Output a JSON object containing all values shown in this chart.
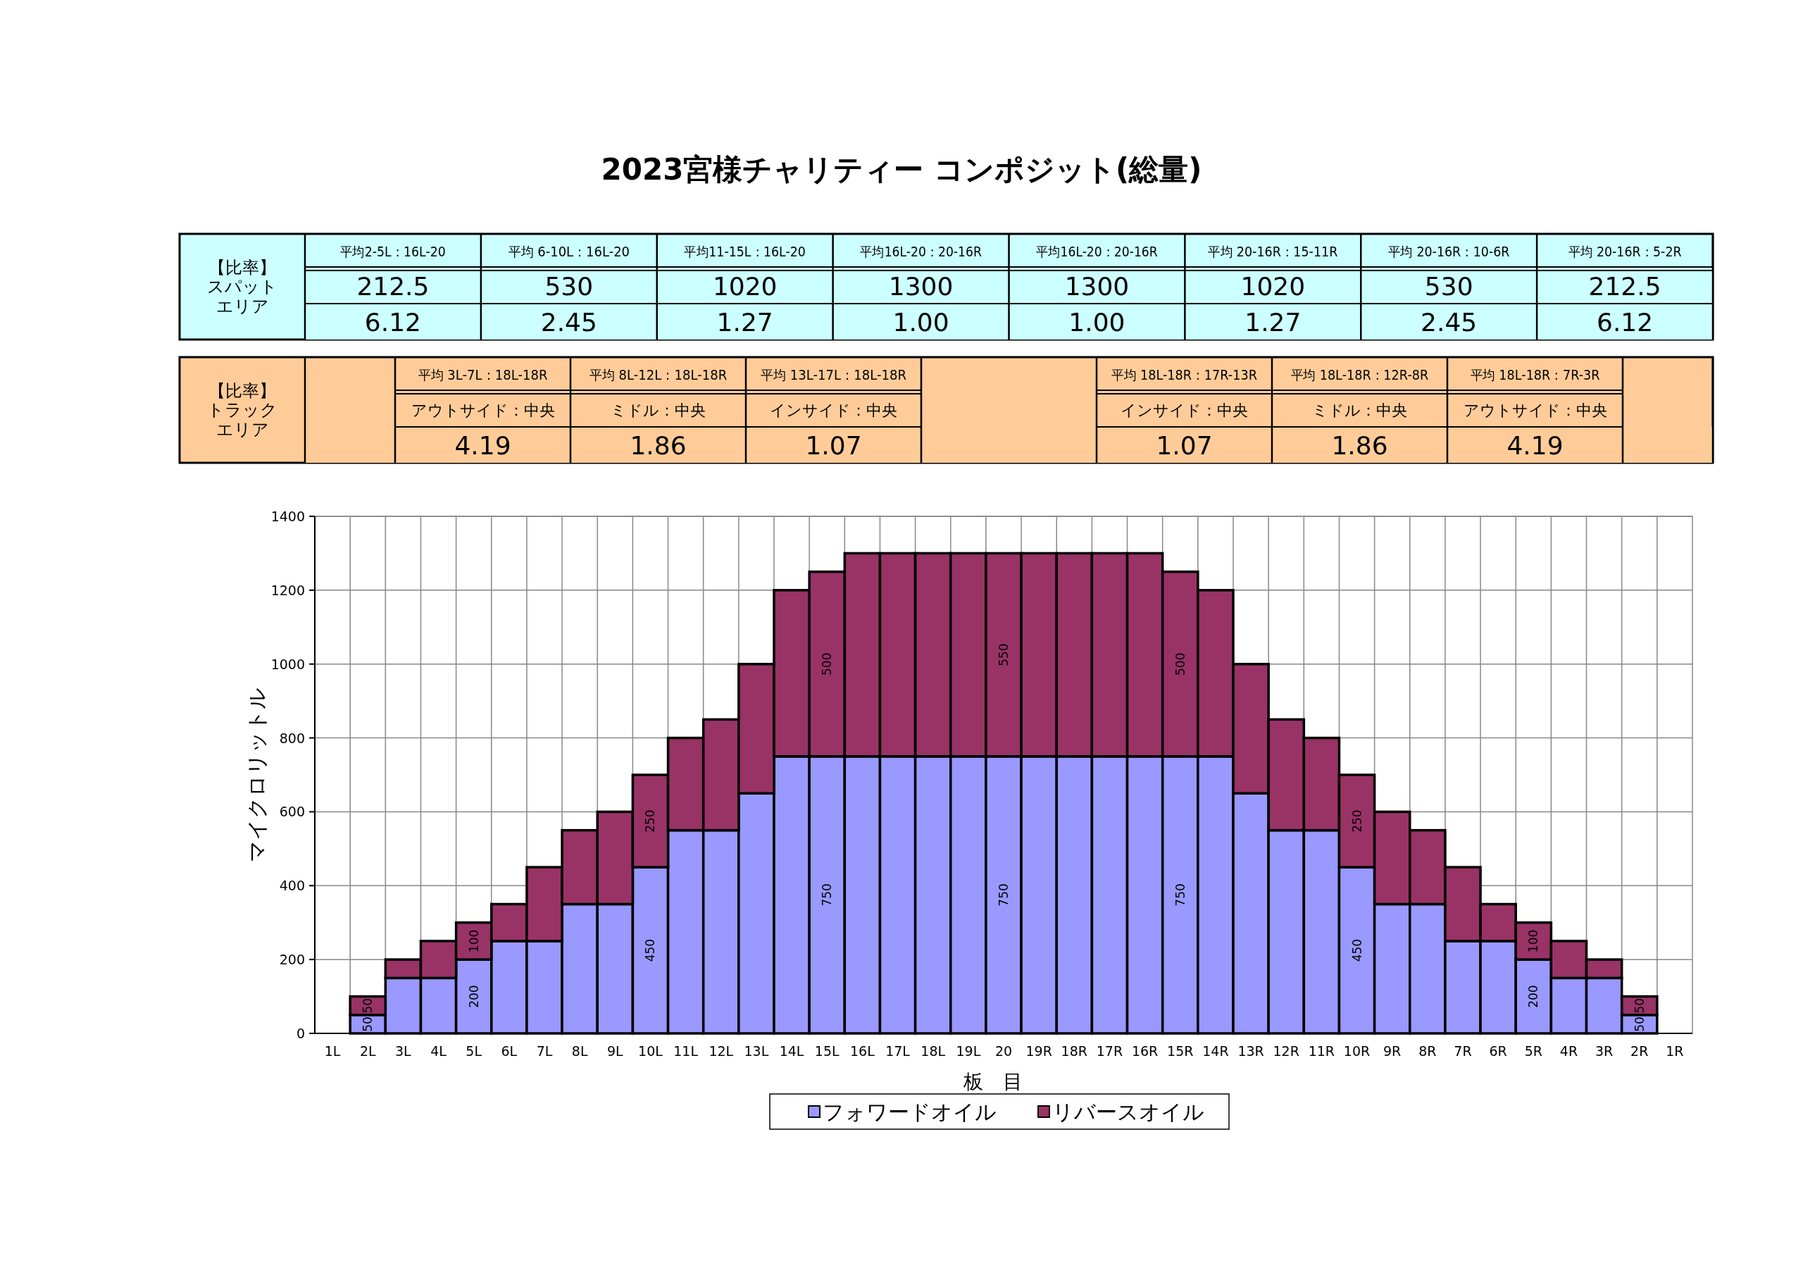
{
  "chart_data": [
    {
      "type": "other",
      "ylabel": [
        "【比率】",
        "スパット",
        "エリア"
      ],
      "categories": [
        "平均2-5L：16L-20",
        "平均 6-10L：16L-20",
        "平均11-15L：16L-20",
        "平均16L-20：20-16R",
        "平均16L-20：20-16R",
        "平均 20-16R：15-11R",
        "平均 20-16R：10-6R",
        "平均 20-16R：5-2R"
      ],
      "series": [
        {
          "color": "#ccffff",
          "values": [
            212.5,
            530,
            1020,
            1300,
            1300,
            1020,
            530,
            212.5
          ],
          "value_labels": [
            "212.5",
            "530",
            "1020",
            "1300",
            "1300",
            "1020",
            "530",
            "212.5"
          ]
        },
        {
          "color": "#ccffff",
          "values": [
            6.12,
            2.45,
            1.27,
            1.0,
            1.0,
            1.27,
            2.45,
            6.12
          ],
          "value_labels": [
            "6.12",
            "2.45",
            "1.27",
            "1.00",
            "1.00",
            "1.27",
            "2.45",
            "6.12"
          ]
        }
      ]
    },
    {
      "type": "other",
      "ylabel": [
        "【比率】",
        "トラック",
        "エリア"
      ],
      "categories": [
        null,
        "平均 3L-7L：18L-18R",
        "平均 8L-12L：18L-18R",
        "平均 13L-17L：18L-18R",
        null,
        "平均 18L-18R：17R-13R",
        "平均 18L-18R：12R-8R",
        "平均 18L-18R：7R-3R",
        null
      ],
      "annotations": [
        "アウトサイド：中央",
        "ミドル：中央",
        "インサイド：中央",
        "インサイド：中央",
        "ミドル：中央",
        "アウトサイド：中央"
      ],
      "series": [
        {
          "color": "#ffcc99",
          "values": [
            null,
            4.19,
            1.86,
            1.07,
            null,
            1.07,
            1.86,
            4.19,
            null
          ]
        }
      ],
      "data_labels": true
    },
    {
      "type": "bar",
      "stacked": true,
      "title": "2023宮様チャリティー コンポジット(総量)",
      "xlabel": "板　目",
      "ylabel": "マイクロリットル",
      "categories": [
        "1L",
        "2L",
        "3L",
        "4L",
        "5L",
        "6L",
        "7L",
        "8L",
        "9L",
        "10L",
        "11L",
        "12L",
        "13L",
        "14L",
        "15L",
        "16L",
        "17L",
        "18L",
        "19L",
        "20",
        "19R",
        "18R",
        "17R",
        "16R",
        "15R",
        "14R",
        "13R",
        "12R",
        "11R",
        "10R",
        "9R",
        "8R",
        "7R",
        "6R",
        "5R",
        "4R",
        "3R",
        "2R",
        "1R"
      ],
      "series": [
        {
          "name": "フォワードオイル",
          "color": "#9999ff",
          "values": [
            null,
            50,
            150,
            150,
            200,
            250,
            250,
            350,
            350,
            450,
            550,
            550,
            650,
            750,
            750,
            750,
            750,
            750,
            750,
            750,
            750,
            750,
            750,
            750,
            750,
            750,
            650,
            550,
            550,
            450,
            350,
            350,
            250,
            250,
            200,
            150,
            150,
            50,
            null
          ],
          "value_labels": [
            null,
            "50",
            null,
            null,
            "200",
            null,
            null,
            null,
            null,
            "450",
            null,
            null,
            null,
            null,
            "750",
            null,
            null,
            null,
            null,
            "750",
            null,
            null,
            null,
            null,
            "750",
            null,
            null,
            null,
            null,
            "450",
            null,
            null,
            null,
            null,
            "200",
            null,
            null,
            "50",
            null
          ]
        },
        {
          "name": "リバースオイル",
          "color": "#993366",
          "values": [
            null,
            50,
            50,
            100,
            100,
            100,
            200,
            200,
            250,
            250,
            250,
            300,
            350,
            450,
            500,
            550,
            550,
            550,
            550,
            550,
            550,
            550,
            550,
            550,
            500,
            450,
            350,
            300,
            250,
            250,
            250,
            200,
            200,
            100,
            100,
            100,
            50,
            50,
            null
          ],
          "value_labels": [
            null,
            "50",
            null,
            null,
            "100",
            null,
            null,
            null,
            null,
            "250",
            null,
            null,
            null,
            null,
            "500",
            null,
            null,
            null,
            null,
            "550",
            null,
            null,
            null,
            null,
            "500",
            null,
            null,
            null,
            null,
            "250",
            null,
            null,
            null,
            null,
            "100",
            null,
            null,
            "50",
            null
          ]
        }
      ],
      "ylim": [
        0,
        1400
      ],
      "yticks": [
        0,
        200,
        400,
        600,
        800,
        1000,
        1200,
        1400
      ],
      "grid": true,
      "legend": "bottom"
    }
  ]
}
